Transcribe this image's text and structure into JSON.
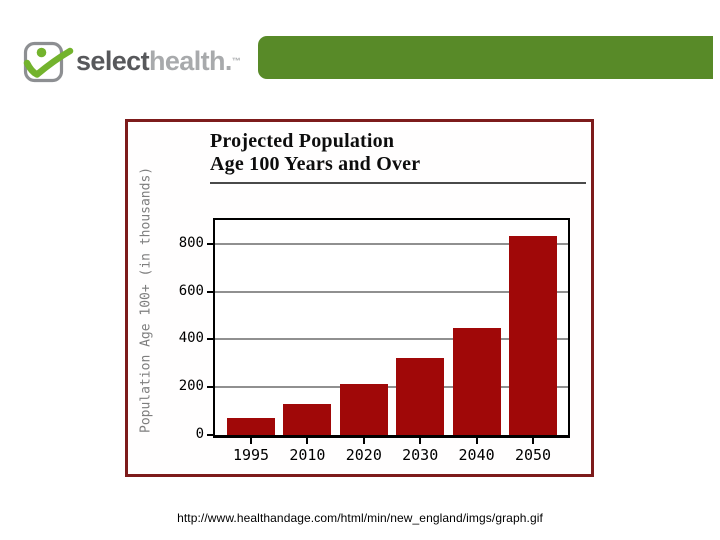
{
  "slide": {
    "logo": {
      "brand_primary": "select",
      "brand_secondary": "health.",
      "trademark": "™"
    },
    "colors": {
      "header_bar_green": "#588a28",
      "logo_green": "#73b32d",
      "logo_gray": "#8d8f92",
      "bar_red": "#a00808",
      "chart_frame_maroon": "#7d1b1b"
    }
  },
  "chart_data": {
    "type": "bar",
    "title": "Projected Population Age 100 Years and Over",
    "title_lines": [
      "Projected Population",
      "Age 100 Years and Over"
    ],
    "ylabel": "Population Age 100+ (in thousands)",
    "xlabel": "",
    "categories": [
      "1995",
      "2010",
      "2020",
      "2030",
      "2040",
      "2050"
    ],
    "values": [
      72,
      131,
      214,
      324,
      447,
      834
    ],
    "yticks": [
      0,
      200,
      400,
      600,
      800
    ],
    "ylim": [
      0,
      900
    ],
    "grid": true,
    "legend": false,
    "bar_color": "#a00808"
  },
  "footer": {
    "source_url": "http://www.healthandage.com/html/min/new_england/imgs/graph.gif"
  }
}
